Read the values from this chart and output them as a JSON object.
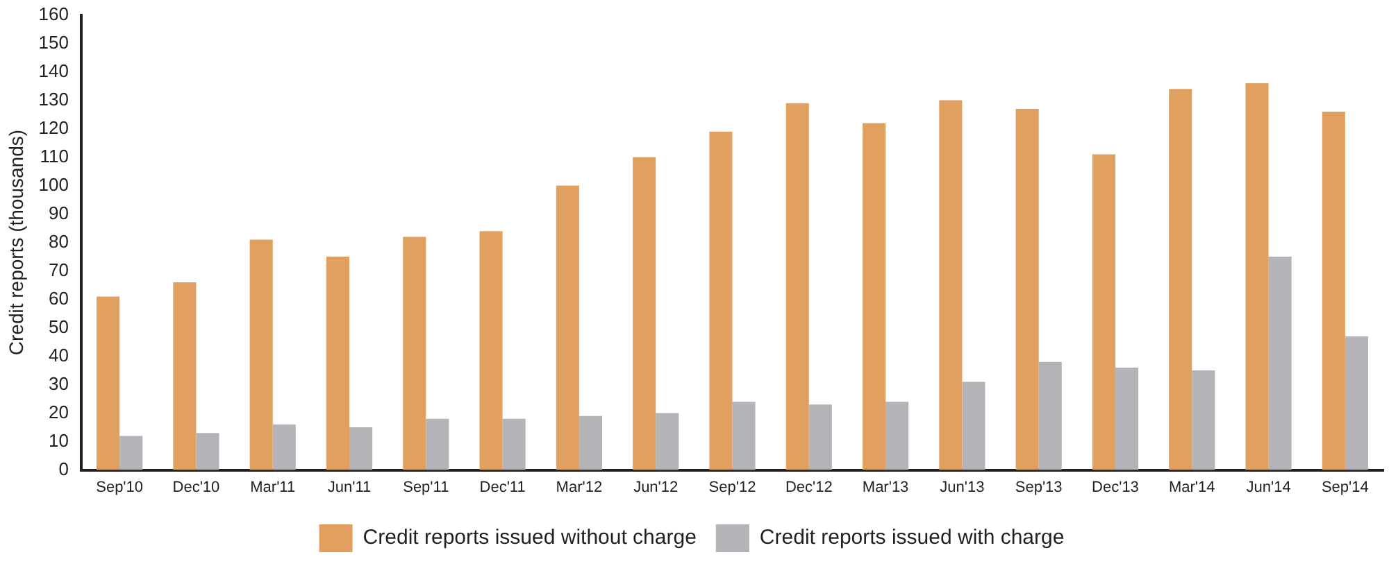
{
  "chart_data": {
    "type": "bar",
    "ylabel": "Credit reports (thousands)",
    "categories": [
      "Sep'10",
      "Dec'10",
      "Mar'11",
      "Jun'11",
      "Sep'11",
      "Dec'11",
      "Mar'12",
      "Jun'12",
      "Sep'12",
      "Dec'12",
      "Mar'13",
      "Jun'13",
      "Sep'13",
      "Dec'13",
      "Mar'14",
      "Jun'14",
      "Sep'14"
    ],
    "series": [
      {
        "name": "Credit reports issued without charge",
        "color": "#e0a060",
        "values": [
          61,
          66,
          81,
          75,
          82,
          84,
          100,
          110,
          119,
          129,
          122,
          130,
          127,
          111,
          134,
          136,
          126
        ]
      },
      {
        "name": "Credit reports issued with charge",
        "color": "#b4b4b8",
        "values": [
          12,
          13,
          16,
          15,
          18,
          18,
          19,
          20,
          24,
          23,
          24,
          31,
          38,
          36,
          35,
          75,
          47
        ]
      }
    ],
    "ylim": [
      0,
      160
    ],
    "yticks": [
      0,
      10,
      20,
      30,
      40,
      50,
      60,
      70,
      80,
      90,
      100,
      110,
      120,
      130,
      140,
      150,
      160
    ],
    "grid": false,
    "legend": "bottom"
  }
}
